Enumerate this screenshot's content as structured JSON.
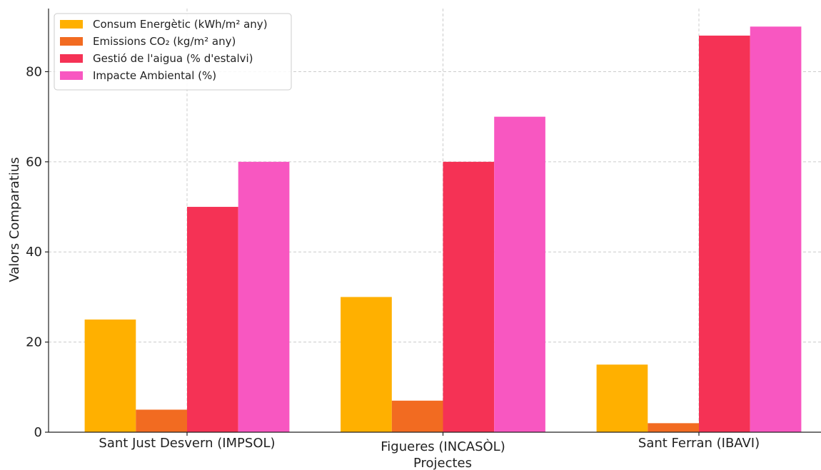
{
  "chart_data": {
    "type": "bar",
    "title": "",
    "xlabel": "Projectes",
    "ylabel": "Valors Comparatius",
    "categories": [
      "Sant Just Desvern (IMPSOL)",
      "Figueres (INCASÒL)",
      "Sant Ferran (IBAVI)"
    ],
    "series": [
      {
        "name": "Consum Energètic (kWh/m² any)",
        "color": "#FFB000",
        "values": [
          25,
          30,
          15
        ]
      },
      {
        "name": "Emissions CO₂ (kg/m² any)",
        "color": "#F26B21",
        "values": [
          5,
          7,
          2
        ]
      },
      {
        "name": "Gestió de l'aigua (% d'estalvi)",
        "color": "#F53255",
        "values": [
          50,
          60,
          88
        ]
      },
      {
        "name": "Impacte Ambiental (%)",
        "color": "#F857C1",
        "values": [
          60,
          70,
          90
        ]
      }
    ],
    "yticks": [
      0,
      20,
      40,
      60,
      80
    ],
    "ylim": [
      0,
      94
    ],
    "grid": true,
    "legend_position": "top-left"
  }
}
